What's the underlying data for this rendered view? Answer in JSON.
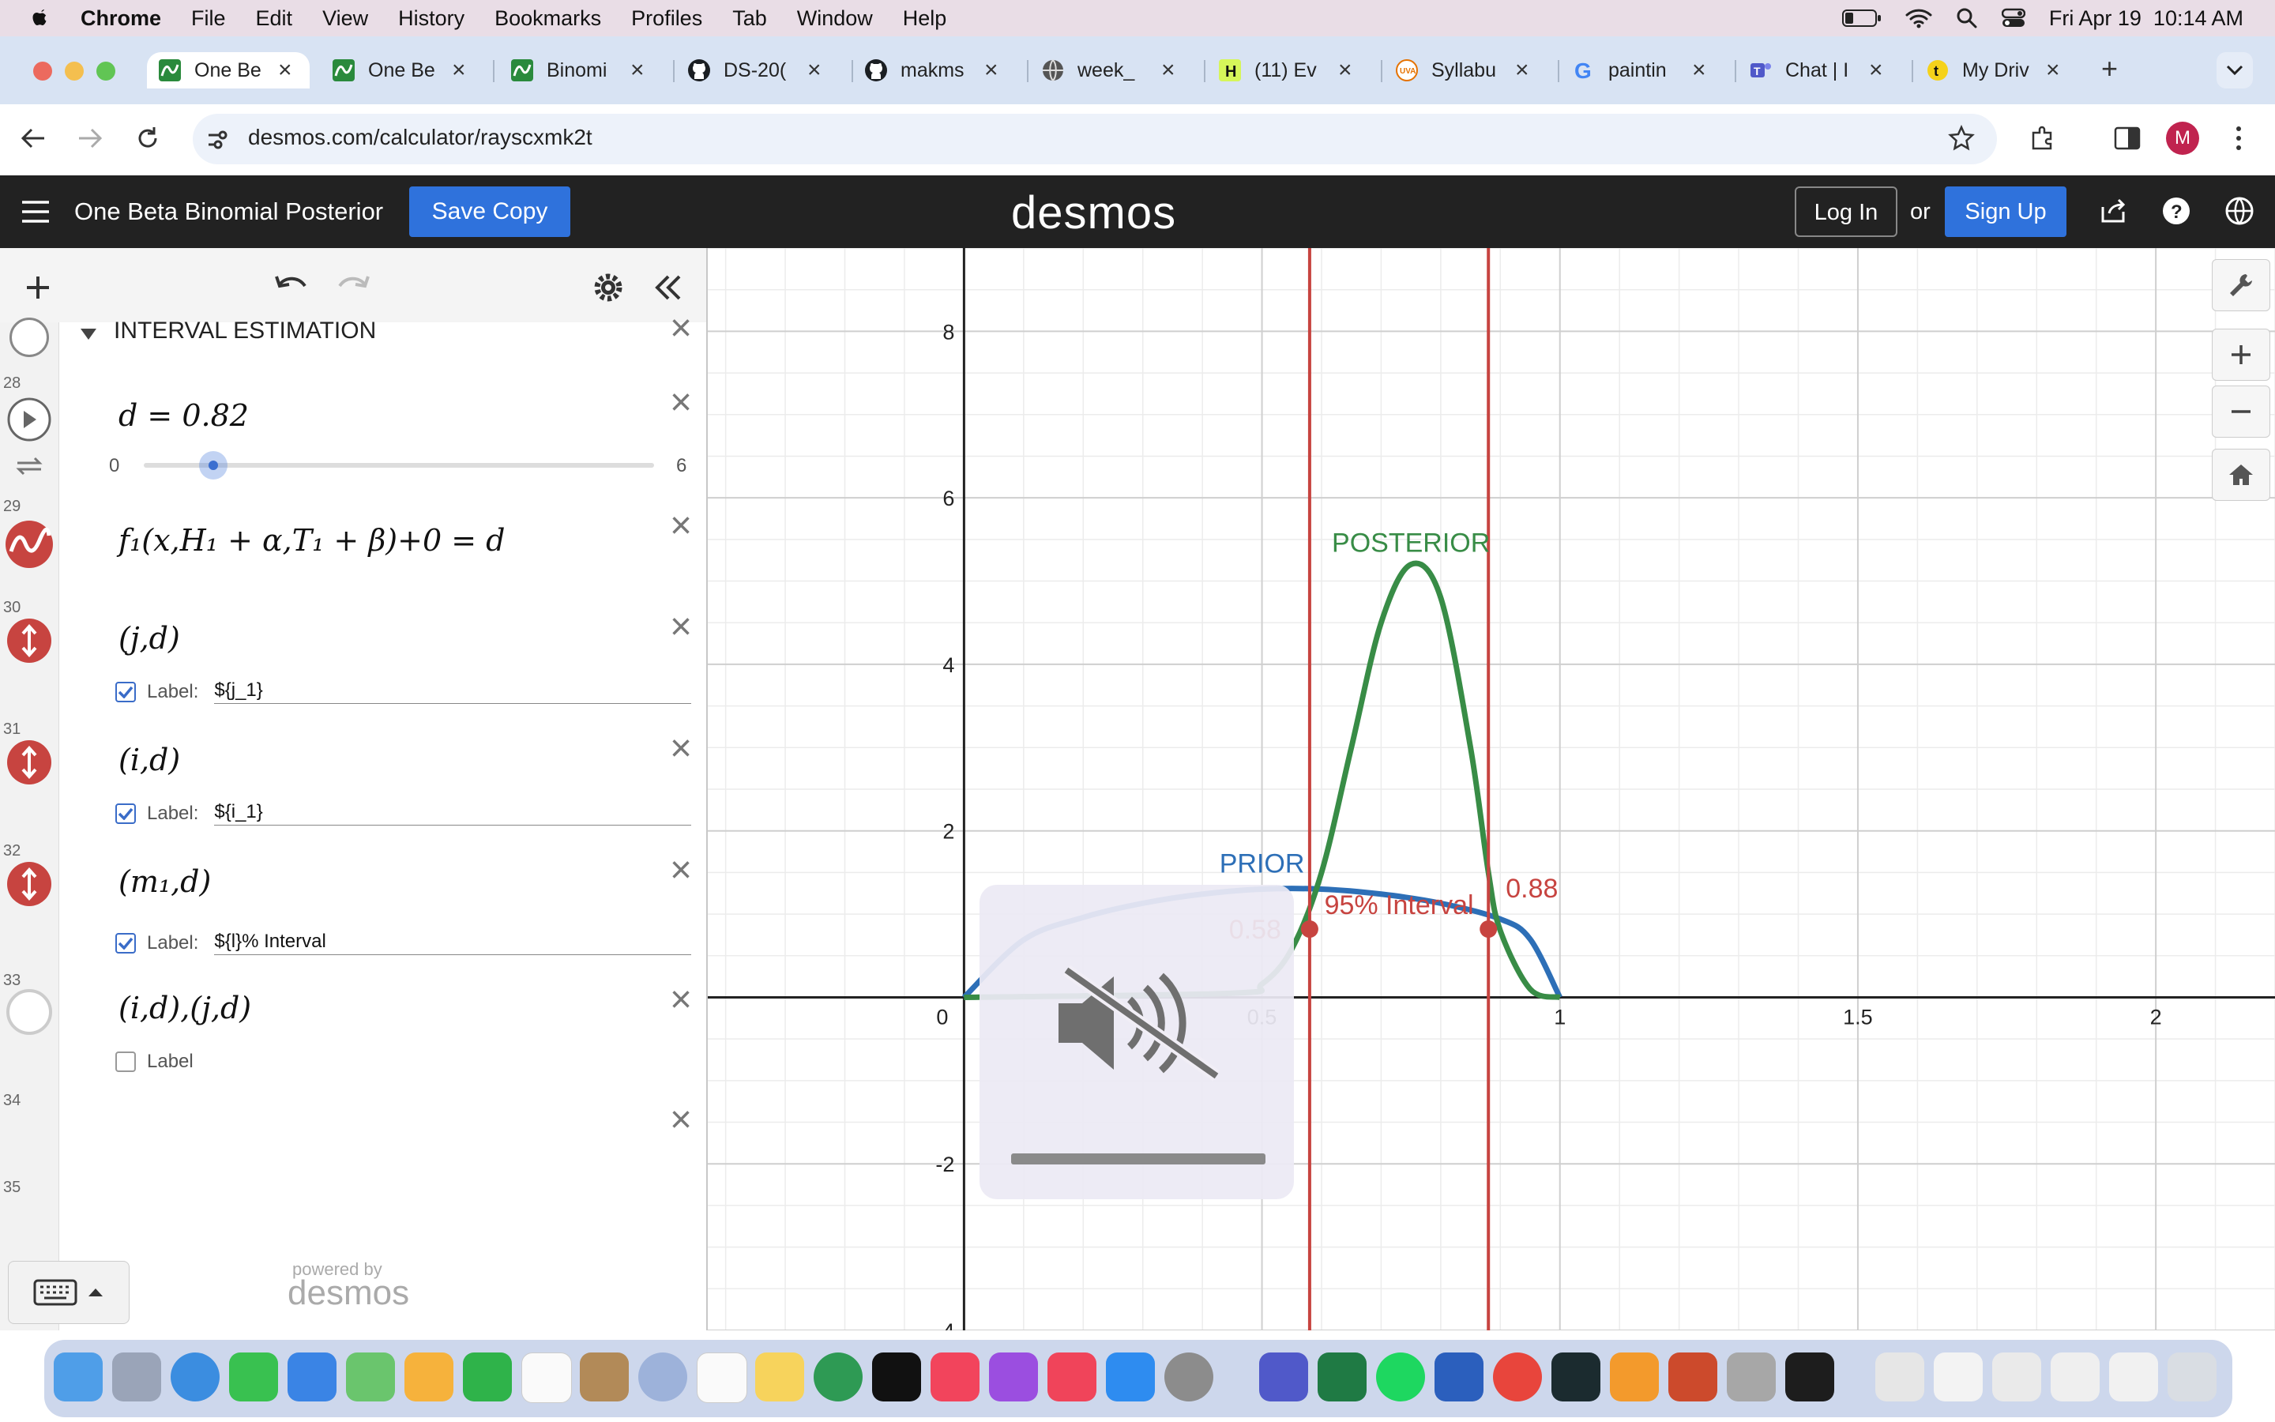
{
  "menubar": {
    "app_name": "Chrome",
    "items": [
      "File",
      "Edit",
      "View",
      "History",
      "Bookmarks",
      "Profiles",
      "Tab",
      "Window",
      "Help"
    ],
    "datetime": "Fri Apr 19  10:14 AM"
  },
  "tabs": [
    {
      "label": "One Be",
      "icon": "desmos-icon",
      "active": true
    },
    {
      "label": "One Be",
      "icon": "desmos-icon"
    },
    {
      "label": "Binomi",
      "icon": "desmos-icon"
    },
    {
      "label": "DS-20(",
      "icon": "github-icon"
    },
    {
      "label": "makms",
      "icon": "github-icon"
    },
    {
      "label": "week_",
      "icon": "globe-icon"
    },
    {
      "label": "(11) Ev",
      "icon": "h-icon"
    },
    {
      "label": "Syllabu",
      "icon": "uva-icon"
    },
    {
      "label": "paintin",
      "icon": "google-icon"
    },
    {
      "label": "Chat | I",
      "icon": "teams-icon"
    },
    {
      "label": "My Driv",
      "icon": "t-icon"
    }
  ],
  "address": {
    "url": "desmos.com/calculator/rayscxmk2t",
    "profile_initial": "M"
  },
  "header": {
    "graph_title": "One Beta Binomial Posterior",
    "save_copy": "Save Copy",
    "logo": "desmos",
    "login": "Log In",
    "or": "or",
    "signup": "Sign Up"
  },
  "expressions": {
    "folder_title": "INTERVAL ESTIMATION",
    "rows": [
      {
        "num": "28",
        "math": "d = 0.82",
        "slider_min": "0",
        "slider_max": "6",
        "slider_value": 0.82
      },
      {
        "num": "29",
        "math": "f₁(x,H₁ + α,T₁ + β)+0 = d"
      },
      {
        "num": "30",
        "math": "(j,d)",
        "label_caption": "Label:",
        "label_value": "${j_1}"
      },
      {
        "num": "31",
        "math": "(i,d)",
        "label_caption": "Label:",
        "label_value": "${i_1}"
      },
      {
        "num": "32",
        "math": "(m₁,d)",
        "label_caption": "Label:",
        "label_value": "${l}% Interval"
      },
      {
        "num": "33",
        "math": "(i,d),(j,d)",
        "label_caption": "Label"
      },
      {
        "num": "34",
        "math": ""
      },
      {
        "num": "35",
        "math": ""
      }
    ],
    "powered_by": "powered by",
    "powered_logo": "desmos"
  },
  "graph": {
    "x_ticks": [
      "0",
      "0.5",
      "1",
      "1.5",
      "2"
    ],
    "y_ticks": [
      "8",
      "6",
      "4",
      "2",
      "-2",
      "-4"
    ],
    "labels": {
      "posterior": "POSTERIOR",
      "prior": "PRIOR",
      "interval": "95% Interval",
      "lower": "0.58",
      "upper": "0.88"
    },
    "colors": {
      "prior": "#2d6fb7",
      "posterior": "#388c46",
      "interval": "#c74440"
    }
  },
  "chart_data": {
    "type": "line",
    "xlim": [
      -0.43,
      2.2
    ],
    "ylim": [
      -4,
      9
    ],
    "grid": true,
    "series": [
      {
        "name": "PRIOR",
        "x": [
          0,
          0.1,
          0.2,
          0.3,
          0.4,
          0.5,
          0.6,
          0.7,
          0.8,
          0.9,
          0.95,
          1
        ],
        "y": [
          0,
          0.69,
          0.96,
          1.13,
          1.24,
          1.3,
          1.3,
          1.24,
          1.13,
          0.94,
          0.7,
          0
        ]
      },
      {
        "name": "POSTERIOR",
        "x": [
          0,
          0.45,
          0.5,
          0.55,
          0.6,
          0.65,
          0.7,
          0.75,
          0.8,
          0.85,
          0.88,
          0.9,
          0.95,
          1
        ],
        "y": [
          0,
          0.05,
          0.16,
          0.58,
          1.5,
          3.0,
          4.5,
          5.2,
          4.8,
          3.0,
          1.5,
          0.8,
          0.1,
          0
        ]
      }
    ],
    "interval": {
      "lower": 0.58,
      "upper": 0.88,
      "density": 0.82
    }
  }
}
